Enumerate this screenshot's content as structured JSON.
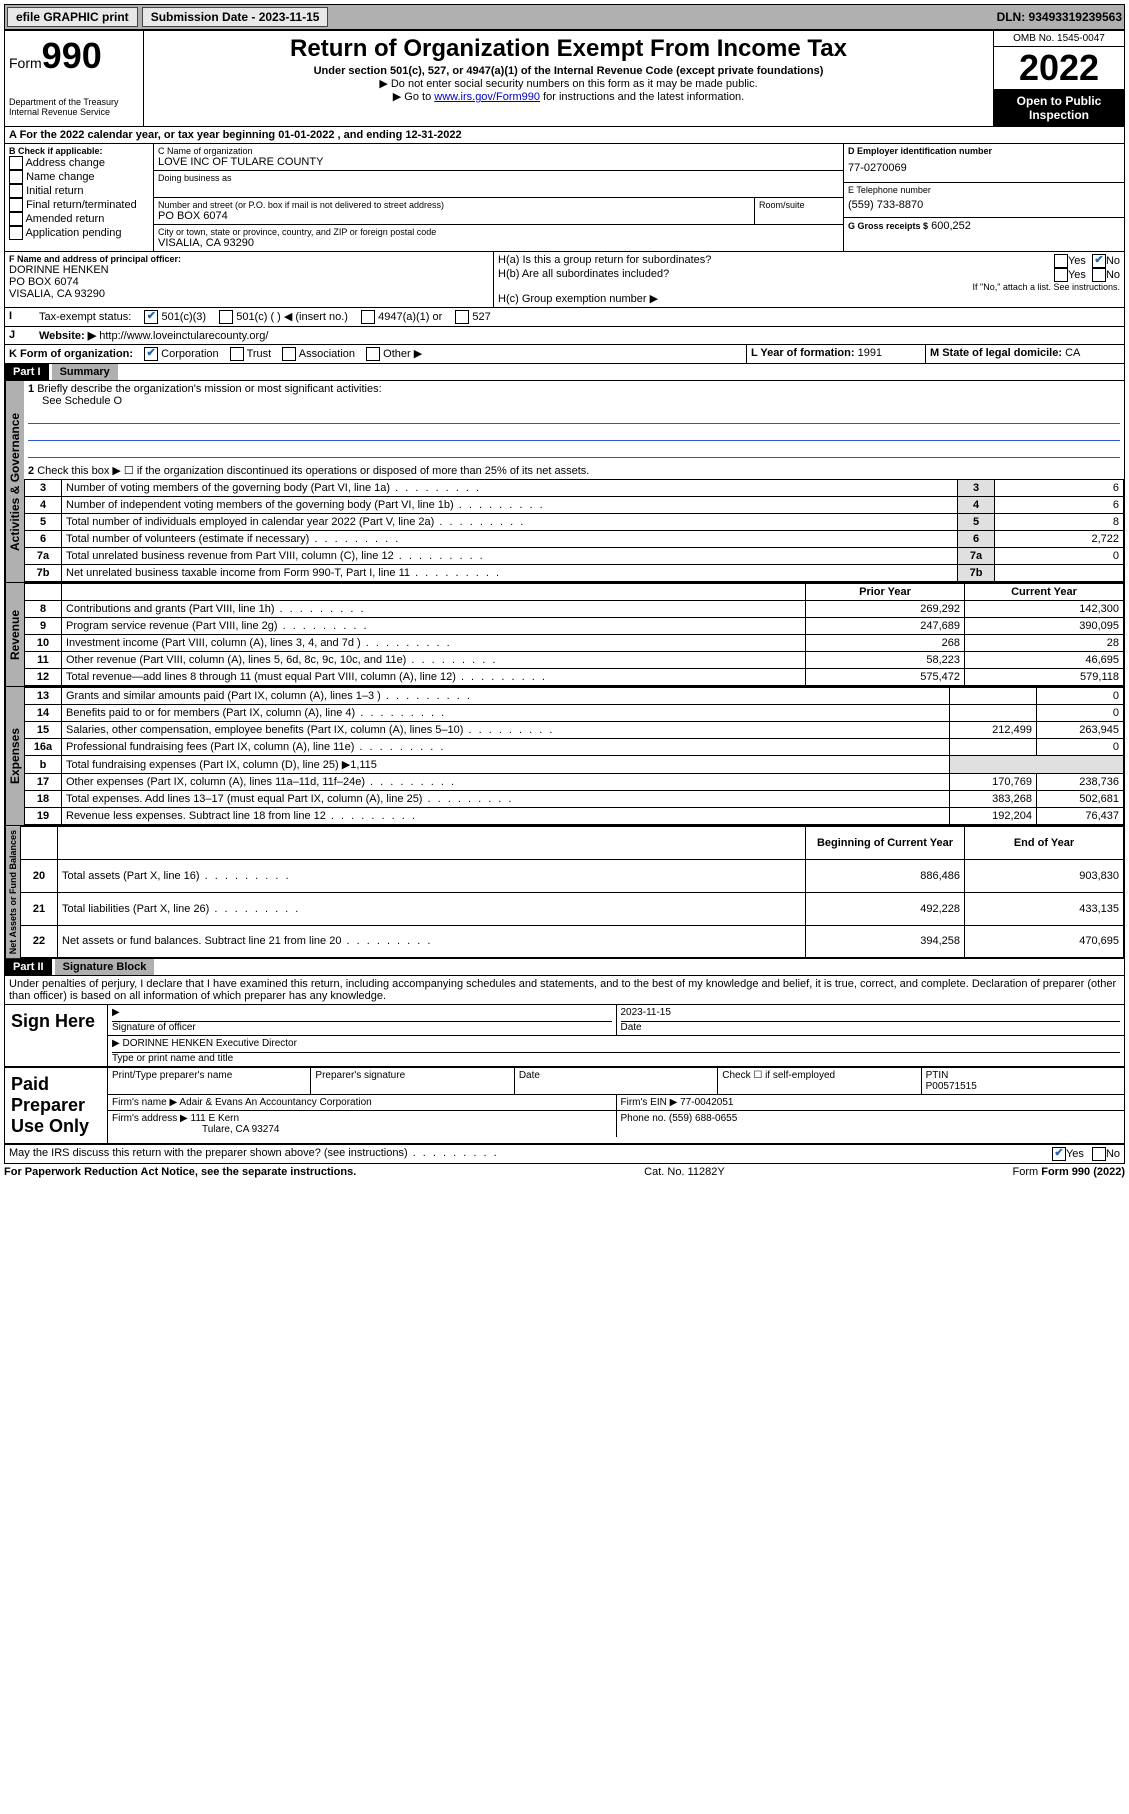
{
  "topbar": {
    "efile": "efile GRAPHIC print",
    "submission_label": "Submission Date - 2023-11-15",
    "dln": "DLN: 93493319239563"
  },
  "header": {
    "form_word": "Form",
    "form_num": "990",
    "dept": "Department of the Treasury\nInternal Revenue Service",
    "title": "Return of Organization Exempt From Income Tax",
    "sub": "Under section 501(c), 527, or 4947(a)(1) of the Internal Revenue Code (except private foundations)",
    "note1": "▶ Do not enter social security numbers on this form as it may be made public.",
    "note2_pre": "▶ Go to ",
    "note2_link": "www.irs.gov/Form990",
    "note2_post": " for instructions and the latest information.",
    "omb": "OMB No. 1545-0047",
    "year": "2022",
    "inspect": "Open to Public Inspection"
  },
  "lineA": "A For the 2022 calendar year, or tax year beginning 01-01-2022    , and ending 12-31-2022",
  "boxB": {
    "label": "B Check if applicable:",
    "items": [
      "Address change",
      "Name change",
      "Initial return",
      "Final return/terminated",
      "Amended return",
      "Application pending"
    ]
  },
  "boxC": {
    "name_label": "C Name of organization",
    "name": "LOVE INC OF TULARE COUNTY",
    "dba_label": "Doing business as",
    "addr_label": "Number and street (or P.O. box if mail is not delivered to street address)",
    "room_label": "Room/suite",
    "addr": "PO BOX 6074",
    "city_label": "City or town, state or province, country, and ZIP or foreign postal code",
    "city": "VISALIA, CA  93290"
  },
  "boxD": {
    "label": "D Employer identification number",
    "val": "77-0270069"
  },
  "boxE": {
    "label": "E Telephone number",
    "val": "(559) 733-8870"
  },
  "boxG": {
    "label": "G Gross receipts $",
    "val": "600,252"
  },
  "boxF": {
    "label": "F Name and address of principal officer:",
    "name": "DORINNE HENKEN",
    "addr": "PO BOX 6074",
    "city": "VISALIA, CA  93290"
  },
  "boxH": {
    "a": "H(a)  Is this a group return for subordinates?",
    "b": "H(b)  Are all subordinates included?",
    "note": "If \"No,\" attach a list. See instructions.",
    "c": "H(c)  Group exemption number ▶"
  },
  "boxI": {
    "label": "Tax-exempt status:",
    "opts": [
      "501(c)(3)",
      "501(c) (  ) ◀ (insert no.)",
      "4947(a)(1) or",
      "527"
    ]
  },
  "boxJ": {
    "label": "Website: ▶",
    "val": "http://www.loveinctularecounty.org/"
  },
  "boxK": {
    "label": "K Form of organization:",
    "opts": [
      "Corporation",
      "Trust",
      "Association",
      "Other ▶"
    ]
  },
  "boxL": {
    "label": "L Year of formation:",
    "val": "1991"
  },
  "boxM": {
    "label": "M State of legal domicile:",
    "val": "CA"
  },
  "partI": {
    "title": "Part I",
    "heading": "Summary",
    "q1": "Briefly describe the organization's mission or most significant activities:",
    "q1ans": "See Schedule O",
    "q2": "Check this box ▶ ☐  if the organization discontinued its operations or disposed of more than 25% of its net assets.",
    "rows_top": [
      {
        "n": "3",
        "t": "Number of voting members of the governing body (Part VI, line 1a)",
        "v": "6"
      },
      {
        "n": "4",
        "t": "Number of independent voting members of the governing body (Part VI, line 1b)",
        "v": "6"
      },
      {
        "n": "5",
        "t": "Total number of individuals employed in calendar year 2022 (Part V, line 2a)",
        "v": "8"
      },
      {
        "n": "6",
        "t": "Total number of volunteers (estimate if necessary)",
        "v": "2,722"
      },
      {
        "n": "7a",
        "t": "Total unrelated business revenue from Part VIII, column (C), line 12",
        "v": "0"
      },
      {
        "n": "7b",
        "t": "Net unrelated business taxable income from Form 990-T, Part I, line 11",
        "v": ""
      }
    ],
    "col_prior": "Prior Year",
    "col_current": "Current Year",
    "rows_rev": [
      {
        "n": "8",
        "t": "Contributions and grants (Part VIII, line 1h)",
        "p": "269,292",
        "c": "142,300"
      },
      {
        "n": "9",
        "t": "Program service revenue (Part VIII, line 2g)",
        "p": "247,689",
        "c": "390,095"
      },
      {
        "n": "10",
        "t": "Investment income (Part VIII, column (A), lines 3, 4, and 7d )",
        "p": "268",
        "c": "28"
      },
      {
        "n": "11",
        "t": "Other revenue (Part VIII, column (A), lines 5, 6d, 8c, 9c, 10c, and 11e)",
        "p": "58,223",
        "c": "46,695"
      },
      {
        "n": "12",
        "t": "Total revenue—add lines 8 through 11 (must equal Part VIII, column (A), line 12)",
        "p": "575,472",
        "c": "579,118"
      }
    ],
    "rows_exp": [
      {
        "n": "13",
        "t": "Grants and similar amounts paid (Part IX, column (A), lines 1–3 )",
        "p": "",
        "c": "0"
      },
      {
        "n": "14",
        "t": "Benefits paid to or for members (Part IX, column (A), line 4)",
        "p": "",
        "c": "0"
      },
      {
        "n": "15",
        "t": "Salaries, other compensation, employee benefits (Part IX, column (A), lines 5–10)",
        "p": "212,499",
        "c": "263,945"
      },
      {
        "n": "16a",
        "t": "Professional fundraising fees (Part IX, column (A), line 11e)",
        "p": "",
        "c": "0"
      },
      {
        "n": "b",
        "t": "Total fundraising expenses (Part IX, column (D), line 25) ▶1,115",
        "p": "—",
        "c": "—"
      },
      {
        "n": "17",
        "t": "Other expenses (Part IX, column (A), lines 11a–11d, 11f–24e)",
        "p": "170,769",
        "c": "238,736"
      },
      {
        "n": "18",
        "t": "Total expenses. Add lines 13–17 (must equal Part IX, column (A), line 25)",
        "p": "383,268",
        "c": "502,681"
      },
      {
        "n": "19",
        "t": "Revenue less expenses. Subtract line 18 from line 12",
        "p": "192,204",
        "c": "76,437"
      }
    ],
    "col_begin": "Beginning of Current Year",
    "col_end": "End of Year",
    "rows_net": [
      {
        "n": "20",
        "t": "Total assets (Part X, line 16)",
        "p": "886,486",
        "c": "903,830"
      },
      {
        "n": "21",
        "t": "Total liabilities (Part X, line 26)",
        "p": "492,228",
        "c": "433,135"
      },
      {
        "n": "22",
        "t": "Net assets or fund balances. Subtract line 21 from line 20",
        "p": "394,258",
        "c": "470,695"
      }
    ],
    "vtabs": {
      "gov": "Activities & Governance",
      "rev": "Revenue",
      "exp": "Expenses",
      "net": "Net Assets or Fund Balances"
    }
  },
  "partII": {
    "title": "Part II",
    "heading": "Signature Block",
    "perjury": "Under penalties of perjury, I declare that I have examined this return, including accompanying schedules and statements, and to the best of my knowledge and belief, it is true, correct, and complete. Declaration of preparer (other than officer) is based on all information of which preparer has any knowledge.",
    "sign_here": "Sign Here",
    "sig_officer": "Signature of officer",
    "sig_date": "2023-11-15",
    "date_label": "Date",
    "officer_name": "DORINNE HENKEN Executive Director",
    "type_label": "Type or print name and title",
    "paid": "Paid Preparer Use Only",
    "prep_name_label": "Print/Type preparer's name",
    "prep_sig_label": "Preparer's signature",
    "prep_date_label": "Date",
    "self_emp": "Check ☐ if self-employed",
    "ptin_label": "PTIN",
    "ptin": "P00571515",
    "firm_name_label": "Firm's name   ▶",
    "firm_name": "Adair & Evans An Accountancy Corporation",
    "firm_ein_label": "Firm's EIN ▶",
    "firm_ein": "77-0042051",
    "firm_addr_label": "Firm's address ▶",
    "firm_addr": "111 E Kern",
    "firm_city": "Tulare, CA  93274",
    "firm_phone_label": "Phone no.",
    "firm_phone": "(559) 688-0655",
    "discuss": "May the IRS discuss this return with the preparer shown above? (see instructions)"
  },
  "footer": {
    "paperwork": "For Paperwork Reduction Act Notice, see the separate instructions.",
    "cat": "Cat. No. 11282Y",
    "form": "Form 990 (2022)"
  }
}
